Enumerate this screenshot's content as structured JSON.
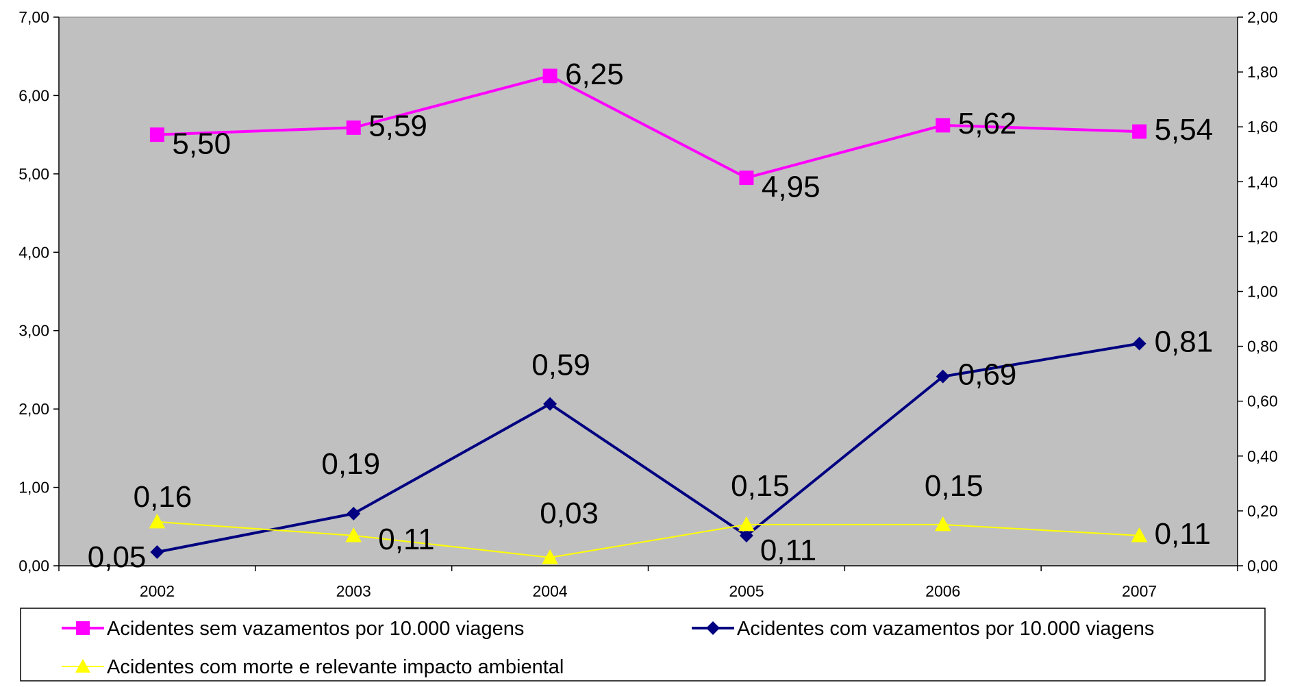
{
  "chart_data": {
    "type": "line",
    "title": "",
    "categories": [
      "2002",
      "2003",
      "2004",
      "2005",
      "2006",
      "2007"
    ],
    "y_left": {
      "range": [
        0,
        7
      ],
      "ticks": [
        "0,00",
        "1,00",
        "2,00",
        "3,00",
        "4,00",
        "5,00",
        "6,00",
        "7,00"
      ]
    },
    "y_right": {
      "range": [
        0,
        2
      ],
      "ticks": [
        "0,00",
        "0,20",
        "0,40",
        "0,60",
        "0,80",
        "1,00",
        "1,20",
        "1,40",
        "1,60",
        "1,80",
        "2,00"
      ]
    },
    "grid": false,
    "plot_background": "#C0C0C0",
    "legend_position": "bottom",
    "series": [
      {
        "name": "Acidentes sem vazamentos por 10.000 viagens",
        "axis": "left",
        "color": "#FF00FF",
        "marker": "square",
        "values": [
          5.5,
          5.59,
          6.25,
          4.95,
          5.62,
          5.54
        ],
        "labels": [
          "5,50",
          "5,59",
          "6,25",
          "4,95",
          "5,62",
          "5,54"
        ]
      },
      {
        "name": "Acidentes com vazamentos por 10.000 viagens",
        "axis": "right",
        "color": "#000080",
        "marker": "diamond",
        "values": [
          0.05,
          0.19,
          0.59,
          0.11,
          0.69,
          0.81
        ],
        "labels": [
          "0,05",
          "0,19",
          "0,59",
          "0,11",
          "0,69",
          "0,81"
        ]
      },
      {
        "name": "Acidentes com morte e relevante impacto ambiental",
        "axis": "right",
        "color": "#FFFF00",
        "marker": "triangle",
        "values": [
          0.16,
          0.11,
          0.03,
          0.15,
          0.15,
          0.11
        ],
        "labels": [
          "0,16",
          "0,11",
          "0,03",
          "0,15",
          "0,15",
          "0,11"
        ]
      }
    ]
  }
}
